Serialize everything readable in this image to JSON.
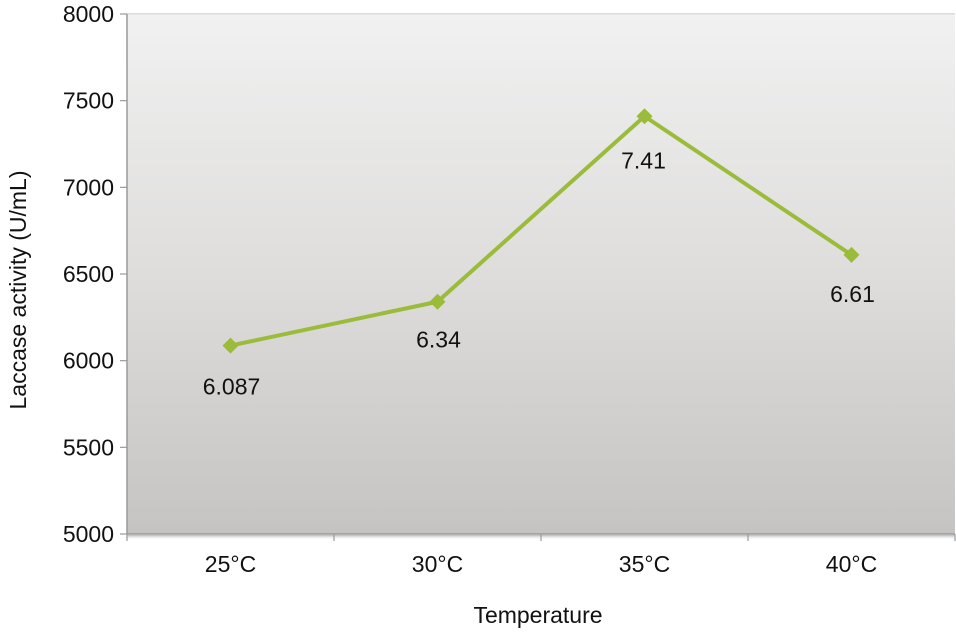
{
  "chart_data": {
    "type": "line",
    "title": "",
    "xlabel": "Temperature",
    "ylabel": "Laccase activity (U/mL)",
    "categories": [
      "25°C",
      "30°C",
      "35°C",
      "40°C"
    ],
    "series": [
      {
        "name": "Laccase activity",
        "values": [
          6087,
          6340,
          7410,
          6610
        ],
        "data_labels": [
          "6.087",
          "6.34",
          "7.41",
          "6.61"
        ],
        "color": "#9bbb3b",
        "marker": "diamond"
      }
    ],
    "ylim": [
      5000,
      8000
    ],
    "yticks": [
      5000,
      5500,
      6000,
      6500,
      7000,
      7500,
      8000
    ],
    "ytick_labels": [
      "5000",
      "5500",
      "6000",
      "6500",
      "7000",
      "7500",
      "8000"
    ],
    "grid": false,
    "legend": "none",
    "plot_background": {
      "top": "#f1f1f1",
      "bottom": "#c6c4c2"
    }
  }
}
